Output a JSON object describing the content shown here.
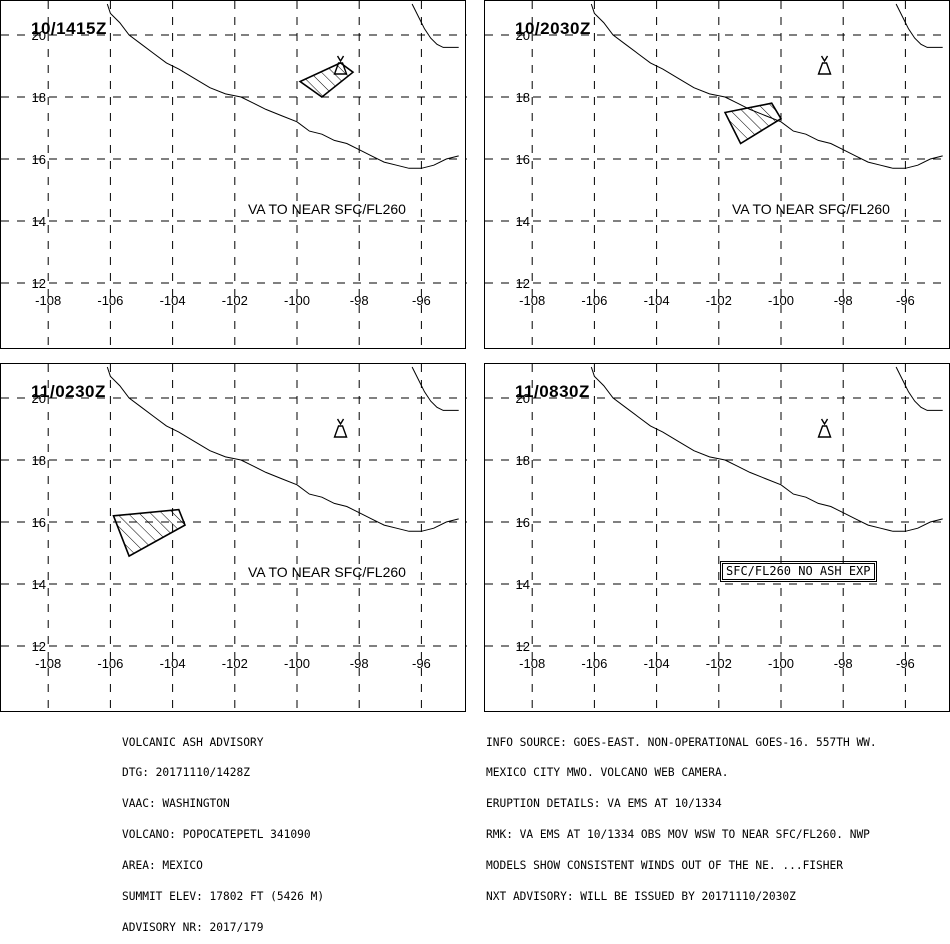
{
  "map_style": {
    "line_color": "#000000",
    "background": "#ffffff"
  },
  "axes": {
    "x_ticks": [
      "-108",
      "-106",
      "-104",
      "-102",
      "-100",
      "-98",
      "-96"
    ],
    "y_ticks": [
      "20",
      "18",
      "16",
      "14",
      "12"
    ]
  },
  "volcano_symbol": {
    "lon": -98.6,
    "lat": 19.0,
    "icon": "volcano-icon"
  },
  "panels": [
    {
      "time": "10/1415Z",
      "label": "VA TO NEAR SFC/FL260",
      "label_boxed": false,
      "ash_polygon": [
        [
          -98.6,
          19.1
        ],
        [
          -99.9,
          18.5
        ],
        [
          -99.2,
          18.0
        ],
        [
          -98.2,
          18.8
        ]
      ]
    },
    {
      "time": "10/2030Z",
      "label": "VA TO NEAR SFC/FL260",
      "label_boxed": false,
      "ash_polygon": [
        [
          -101.8,
          17.5
        ],
        [
          -100.3,
          17.8
        ],
        [
          -100.0,
          17.3
        ],
        [
          -101.3,
          16.5
        ]
      ]
    },
    {
      "time": "11/0230Z",
      "label": "VA TO NEAR SFC/FL260",
      "label_boxed": false,
      "ash_polygon": [
        [
          -105.9,
          16.2
        ],
        [
          -103.8,
          16.4
        ],
        [
          -103.6,
          15.9
        ],
        [
          -105.4,
          14.9
        ]
      ]
    },
    {
      "time": "11/0830Z",
      "label": "SFC/FL260 NO ASH EXP",
      "label_boxed": true,
      "ash_polygon": []
    }
  ],
  "advisory_left": [
    "VOLCANIC ASH ADVISORY",
    "DTG: 20171110/1428Z",
    "VAAC: WASHINGTON",
    "VOLCANO: POPOCATEPETL 341090",
    "AREA: MEXICO",
    "SUMMIT ELEV: 17802 FT (5426 M)",
    "ADVISORY NR: 2017/179"
  ],
  "advisory_right": [
    "INFO SOURCE: GOES-EAST. NON-OPERATIONAL GOES-16. 557TH WW.",
    "MEXICO CITY MWO. VOLCANO WEB CAMERA.",
    "ERUPTION DETAILS: VA EMS AT 10/1334",
    "RMK: VA EMS AT 10/1334 OBS MOV WSW TO NEAR SFC/FL260. NWP",
    "MODELS SHOW CONSISTENT WINDS OUT OF THE NE. ...FISHER",
    "NXT ADVISORY: WILL BE ISSUED BY 20171110/2030Z"
  ]
}
